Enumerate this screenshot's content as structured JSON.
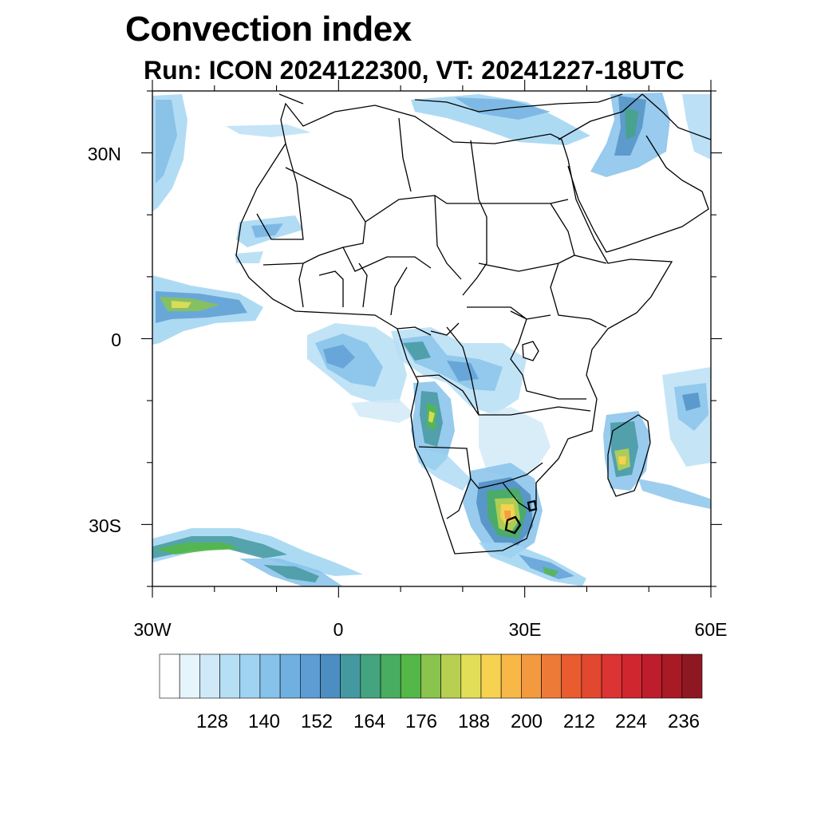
{
  "header": {
    "title": "Convection index",
    "subtitle": "Run: ICON 2024122300,  VT: 20241227-18UTC"
  },
  "axes": {
    "x_ticks": [
      {
        "lon": -30,
        "label": "30W"
      },
      {
        "lon": 0,
        "label": "0"
      },
      {
        "lon": 30,
        "label": "30E"
      },
      {
        "lon": 60,
        "label": "60E"
      }
    ],
    "y_ticks": [
      {
        "lat": 30,
        "label": "30N"
      },
      {
        "lat": 0,
        "label": "0"
      },
      {
        "lat": -30,
        "label": "30S"
      }
    ],
    "lon_range": [
      -30,
      60
    ],
    "lat_range": [
      -40,
      40
    ]
  },
  "colorbar": {
    "colors": [
      "#ffffff",
      "#e6f4fc",
      "#cfe9f8",
      "#b6def5",
      "#9fd3f1",
      "#86c2ea",
      "#70b0e0",
      "#5e9dd4",
      "#4d8ec2",
      "#4499a0",
      "#44a47f",
      "#48ad60",
      "#53b848",
      "#8ac44e",
      "#b8d052",
      "#e3de58",
      "#f6d250",
      "#f8b848",
      "#f39a40",
      "#ee7a38",
      "#e85c30",
      "#e24830",
      "#db3432",
      "#cf2630",
      "#be1e2c",
      "#a81a26",
      "#8e1822"
    ],
    "labels": [
      "128",
      "140",
      "152",
      "164",
      "176",
      "188",
      "200",
      "212",
      "224",
      "236"
    ]
  }
}
